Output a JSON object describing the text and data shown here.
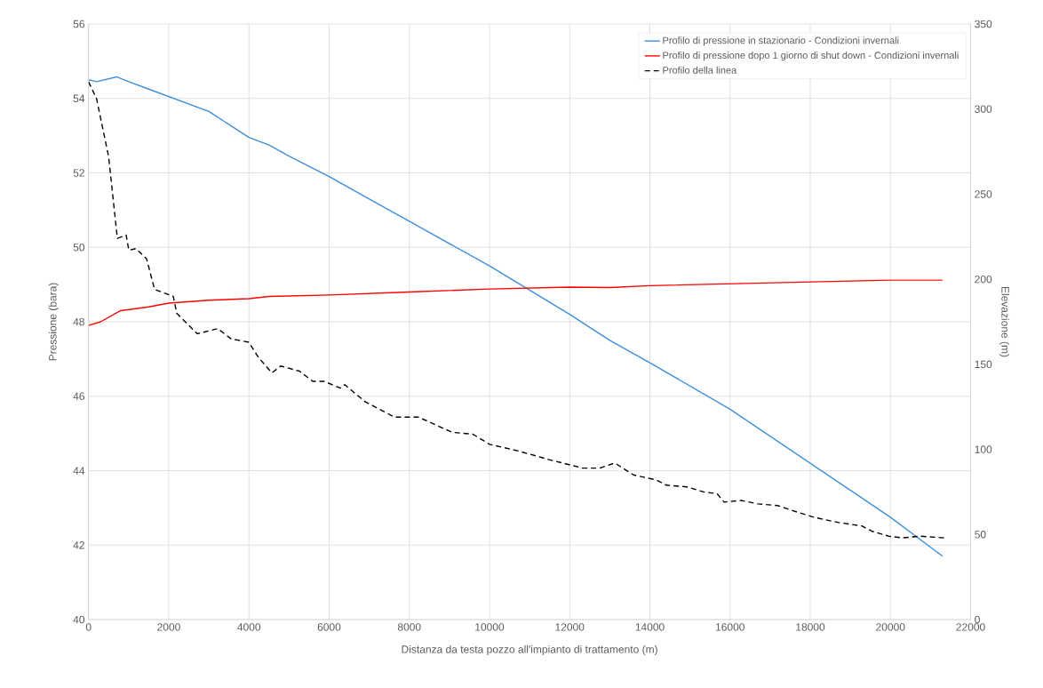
{
  "chart_data": {
    "type": "line",
    "xlabel": "Distanza da testa pozzo all'impianto di trattamento (m)",
    "ylabel": "Pressione (bara)",
    "y2label": "Elevazione (m)",
    "xlim": [
      0,
      22000
    ],
    "xticks": [
      0,
      2000,
      4000,
      6000,
      8000,
      10000,
      12000,
      14000,
      16000,
      18000,
      20000,
      22000
    ],
    "ylim": [
      40,
      56
    ],
    "yticks": [
      40,
      42,
      44,
      46,
      48,
      50,
      52,
      54,
      56
    ],
    "y2lim": [
      0,
      350
    ],
    "y2ticks": [
      0,
      50,
      100,
      150,
      200,
      250,
      300,
      350
    ],
    "grid": true,
    "legend": "top right",
    "marker": "none",
    "series": [
      {
        "name": "Profilo di pressione in stazionario - Condizioni invernali",
        "color": "#3f8fd8",
        "line_style": "solid",
        "x": [
          0,
          200,
          700,
          1000,
          1500,
          2000,
          3000,
          4000,
          4500,
          5000,
          6000,
          7000,
          8000,
          9000,
          10000,
          11000,
          12000,
          13000,
          14000,
          16000,
          18000,
          20000,
          21300
        ],
        "values": [
          54.5,
          54.45,
          54.58,
          54.45,
          54.25,
          54.05,
          53.65,
          52.95,
          52.75,
          52.45,
          51.9,
          51.3,
          50.7,
          50.1,
          49.5,
          48.85,
          48.2,
          47.5,
          46.9,
          45.65,
          44.2,
          42.75,
          41.7
        ]
      },
      {
        "name": "Profilo di pressione dopo 1 giorno di shut down - Condizioni invernali",
        "color": "#ff0000",
        "line_style": "solid",
        "x": [
          0,
          300,
          800,
          1500,
          2000,
          3000,
          4000,
          4500,
          6000,
          8000,
          10000,
          12000,
          13000,
          14000,
          16000,
          18000,
          20000,
          21300
        ],
        "values": [
          47.9,
          48.0,
          48.3,
          48.4,
          48.5,
          48.58,
          48.62,
          48.68,
          48.72,
          48.8,
          48.88,
          48.93,
          48.92,
          48.97,
          49.02,
          49.07,
          49.12,
          49.12
        ]
      },
      {
        "name": "Profilo della linea",
        "color": "#000000",
        "line_style": "dashed",
        "axis": "y2",
        "x": [
          0,
          200,
          500,
          718,
          937,
          1004,
          1181,
          1447,
          1647,
          2112,
          2200,
          2710,
          2888,
          3220,
          3553,
          3996,
          4239,
          4572,
          4793,
          5259,
          5591,
          5879,
          6278,
          6389,
          6899,
          7630,
          8229,
          9071,
          9580,
          10001,
          10732,
          11486,
          12328,
          12749,
          13126,
          13591,
          14168,
          14411,
          14921,
          15342,
          15675,
          15852,
          16273,
          16694,
          17182,
          17692,
          18113,
          18711,
          19287,
          19531,
          19952,
          20307,
          20728,
          21348
        ],
        "values": [
          316,
          306,
          272,
          224,
          226,
          217,
          218,
          212,
          194,
          190,
          180,
          168,
          169,
          171,
          165,
          163,
          154,
          145,
          149,
          146,
          140,
          140,
          136,
          138,
          128,
          119,
          119,
          110,
          109,
          103,
          99,
          94,
          89,
          89,
          92,
          85,
          82,
          79,
          78,
          75,
          74,
          69,
          70,
          68,
          67,
          63,
          60,
          57,
          55,
          52,
          49,
          48,
          49,
          48
        ]
      }
    ]
  }
}
